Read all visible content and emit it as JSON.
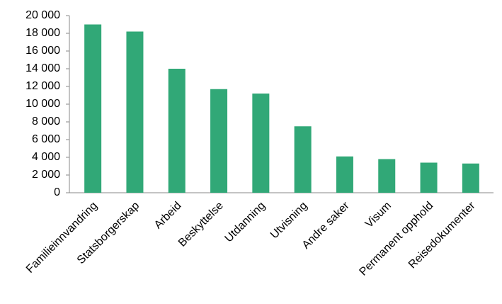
{
  "chart_data": {
    "type": "bar",
    "categories": [
      "Familieinnvandring",
      "Statsborgerskap",
      "Arbeid",
      "Beskyttelse",
      "Utdanning",
      "Utvisning",
      "Andre saker",
      "Visum",
      "Permanent opphold",
      "Reisedokumenter"
    ],
    "values": [
      19000,
      18200,
      14000,
      11700,
      11200,
      7500,
      4100,
      3800,
      3400,
      3300
    ],
    "color": "#31a877",
    "ylim": [
      0,
      20000
    ],
    "yticks": [
      0,
      {
        "value": 2000,
        "label": "2 000"
      },
      {
        "value": 4000,
        "label": "4 000"
      },
      {
        "value": 6000,
        "label": "6 000"
      },
      {
        "value": 8000,
        "label": "8 000"
      },
      {
        "value": 10000,
        "label": "10 000"
      },
      {
        "value": 12000,
        "label": "12 000"
      },
      {
        "value": 14000,
        "label": "14 000"
      },
      {
        "value": 16000,
        "label": "16 000"
      },
      {
        "value": 18000,
        "label": "18 000"
      },
      {
        "value": 20000,
        "label": "20 000"
      }
    ],
    "grid": false
  }
}
